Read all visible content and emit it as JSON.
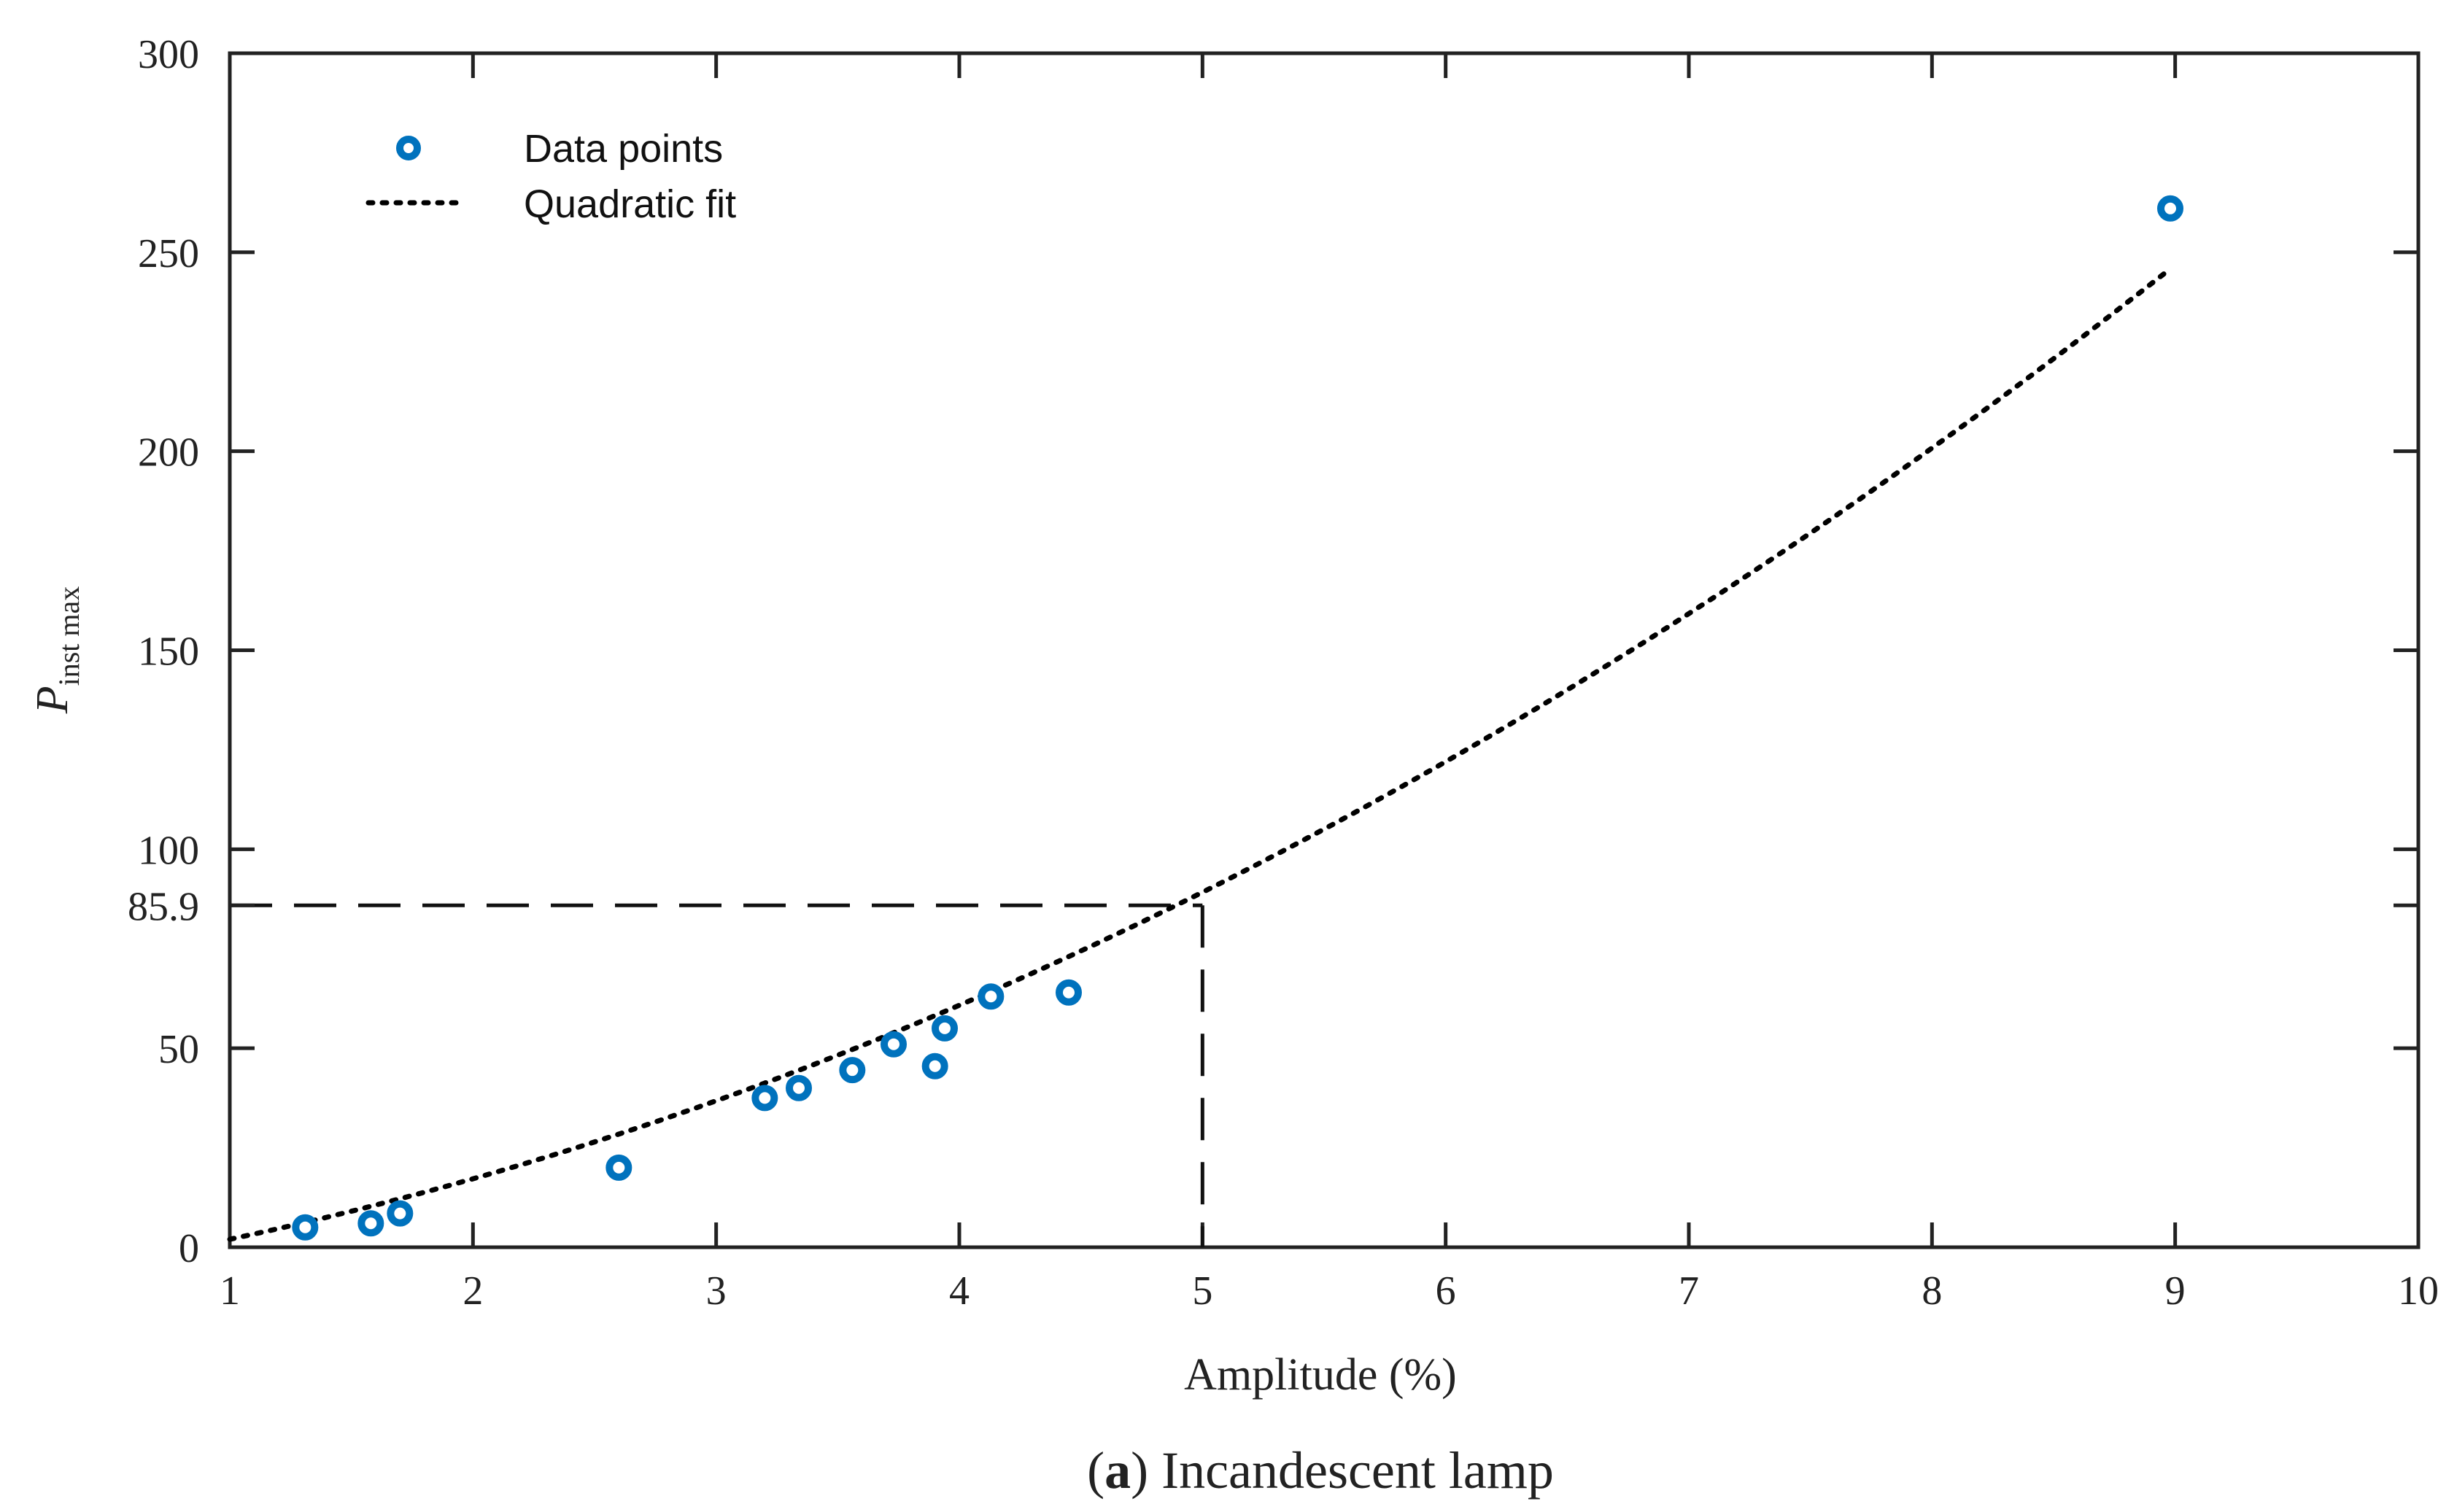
{
  "chart_data": {
    "type": "scatter",
    "caption_bold": "a",
    "caption_rest": " Incandescent lamp",
    "xlabel": "Amplitude (%)",
    "ylabel_main": "P",
    "ylabel_sub": "inst max",
    "xlim": [
      1,
      10
    ],
    "ylim": [
      0,
      300
    ],
    "xticks": [
      "1",
      "2",
      "3",
      "4",
      "5",
      "6",
      "7",
      "8",
      "9",
      "10"
    ],
    "yticks": [
      "0",
      "50",
      "100",
      "150",
      "200",
      "250",
      "300"
    ],
    "reference": {
      "x": 5,
      "y": 85.9,
      "y_label": "85.9"
    },
    "legend": {
      "position": "top-left",
      "entries": [
        "Data points",
        "Quadratic fit"
      ]
    },
    "series": [
      {
        "name": "Data points",
        "marker": "circle",
        "color": "#0072BD",
        "x": [
          1.31,
          1.58,
          1.7,
          2.6,
          3.2,
          3.34,
          3.56,
          3.73,
          3.9,
          3.94,
          4.13,
          4.45,
          8.98
        ],
        "y": [
          5,
          6,
          8.5,
          20,
          37.5,
          40,
          44.5,
          51,
          45.5,
          55,
          63,
          64,
          261
        ]
      },
      {
        "name": "Quadratic fit",
        "line": "dotted",
        "color": "#000000",
        "coefficients": {
          "a": 2.2,
          "b": 8.6,
          "c": -8.8
        }
      }
    ]
  }
}
